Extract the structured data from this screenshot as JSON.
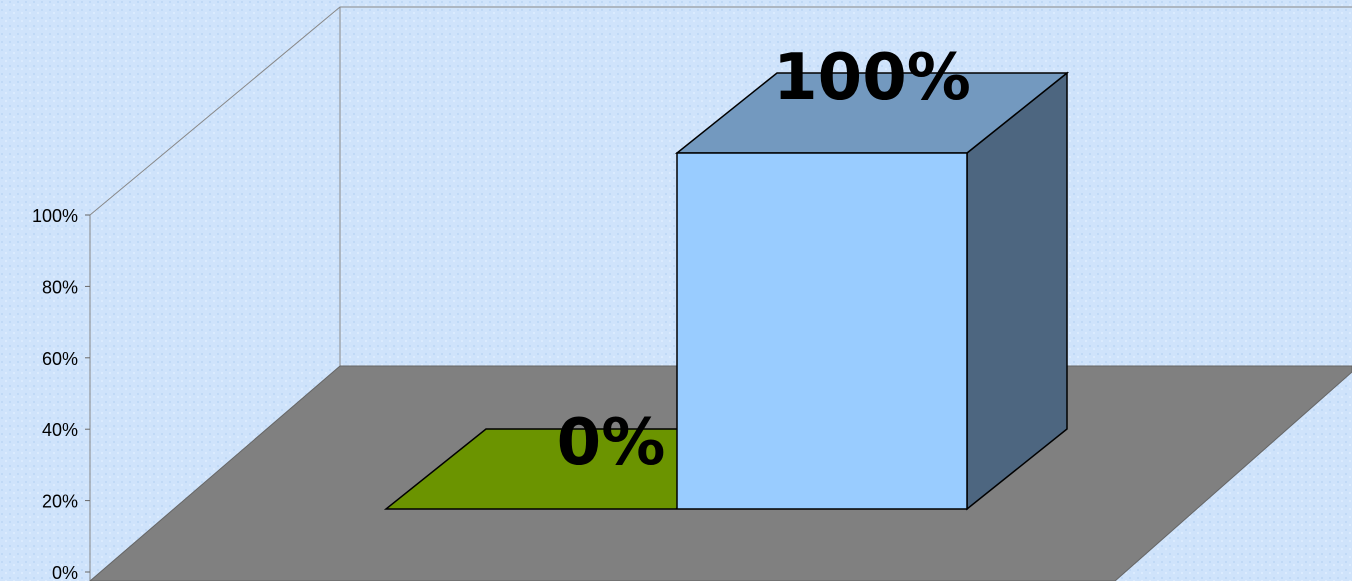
{
  "chart_data": {
    "type": "bar",
    "categories": [
      "",
      ""
    ],
    "values": [
      0,
      100
    ],
    "data_labels": [
      "0%",
      "100%"
    ],
    "title": "",
    "xlabel": "",
    "ylabel": "",
    "ylim": [
      0,
      100
    ],
    "y_ticks": [
      "0%",
      "20%",
      "40%",
      "60%",
      "80%",
      "100%"
    ],
    "grid": false,
    "legend": "none",
    "three_d": true,
    "colors": {
      "background": "#cfe3fb",
      "floor": "#808080",
      "walls": "#cfe3fb",
      "bar_1_front": "#6b9400",
      "bar_2_front": "#99ccff",
      "bar_2_side": "#4d6680",
      "bar_2_top": "#7399bf",
      "outline": "#000000"
    }
  }
}
